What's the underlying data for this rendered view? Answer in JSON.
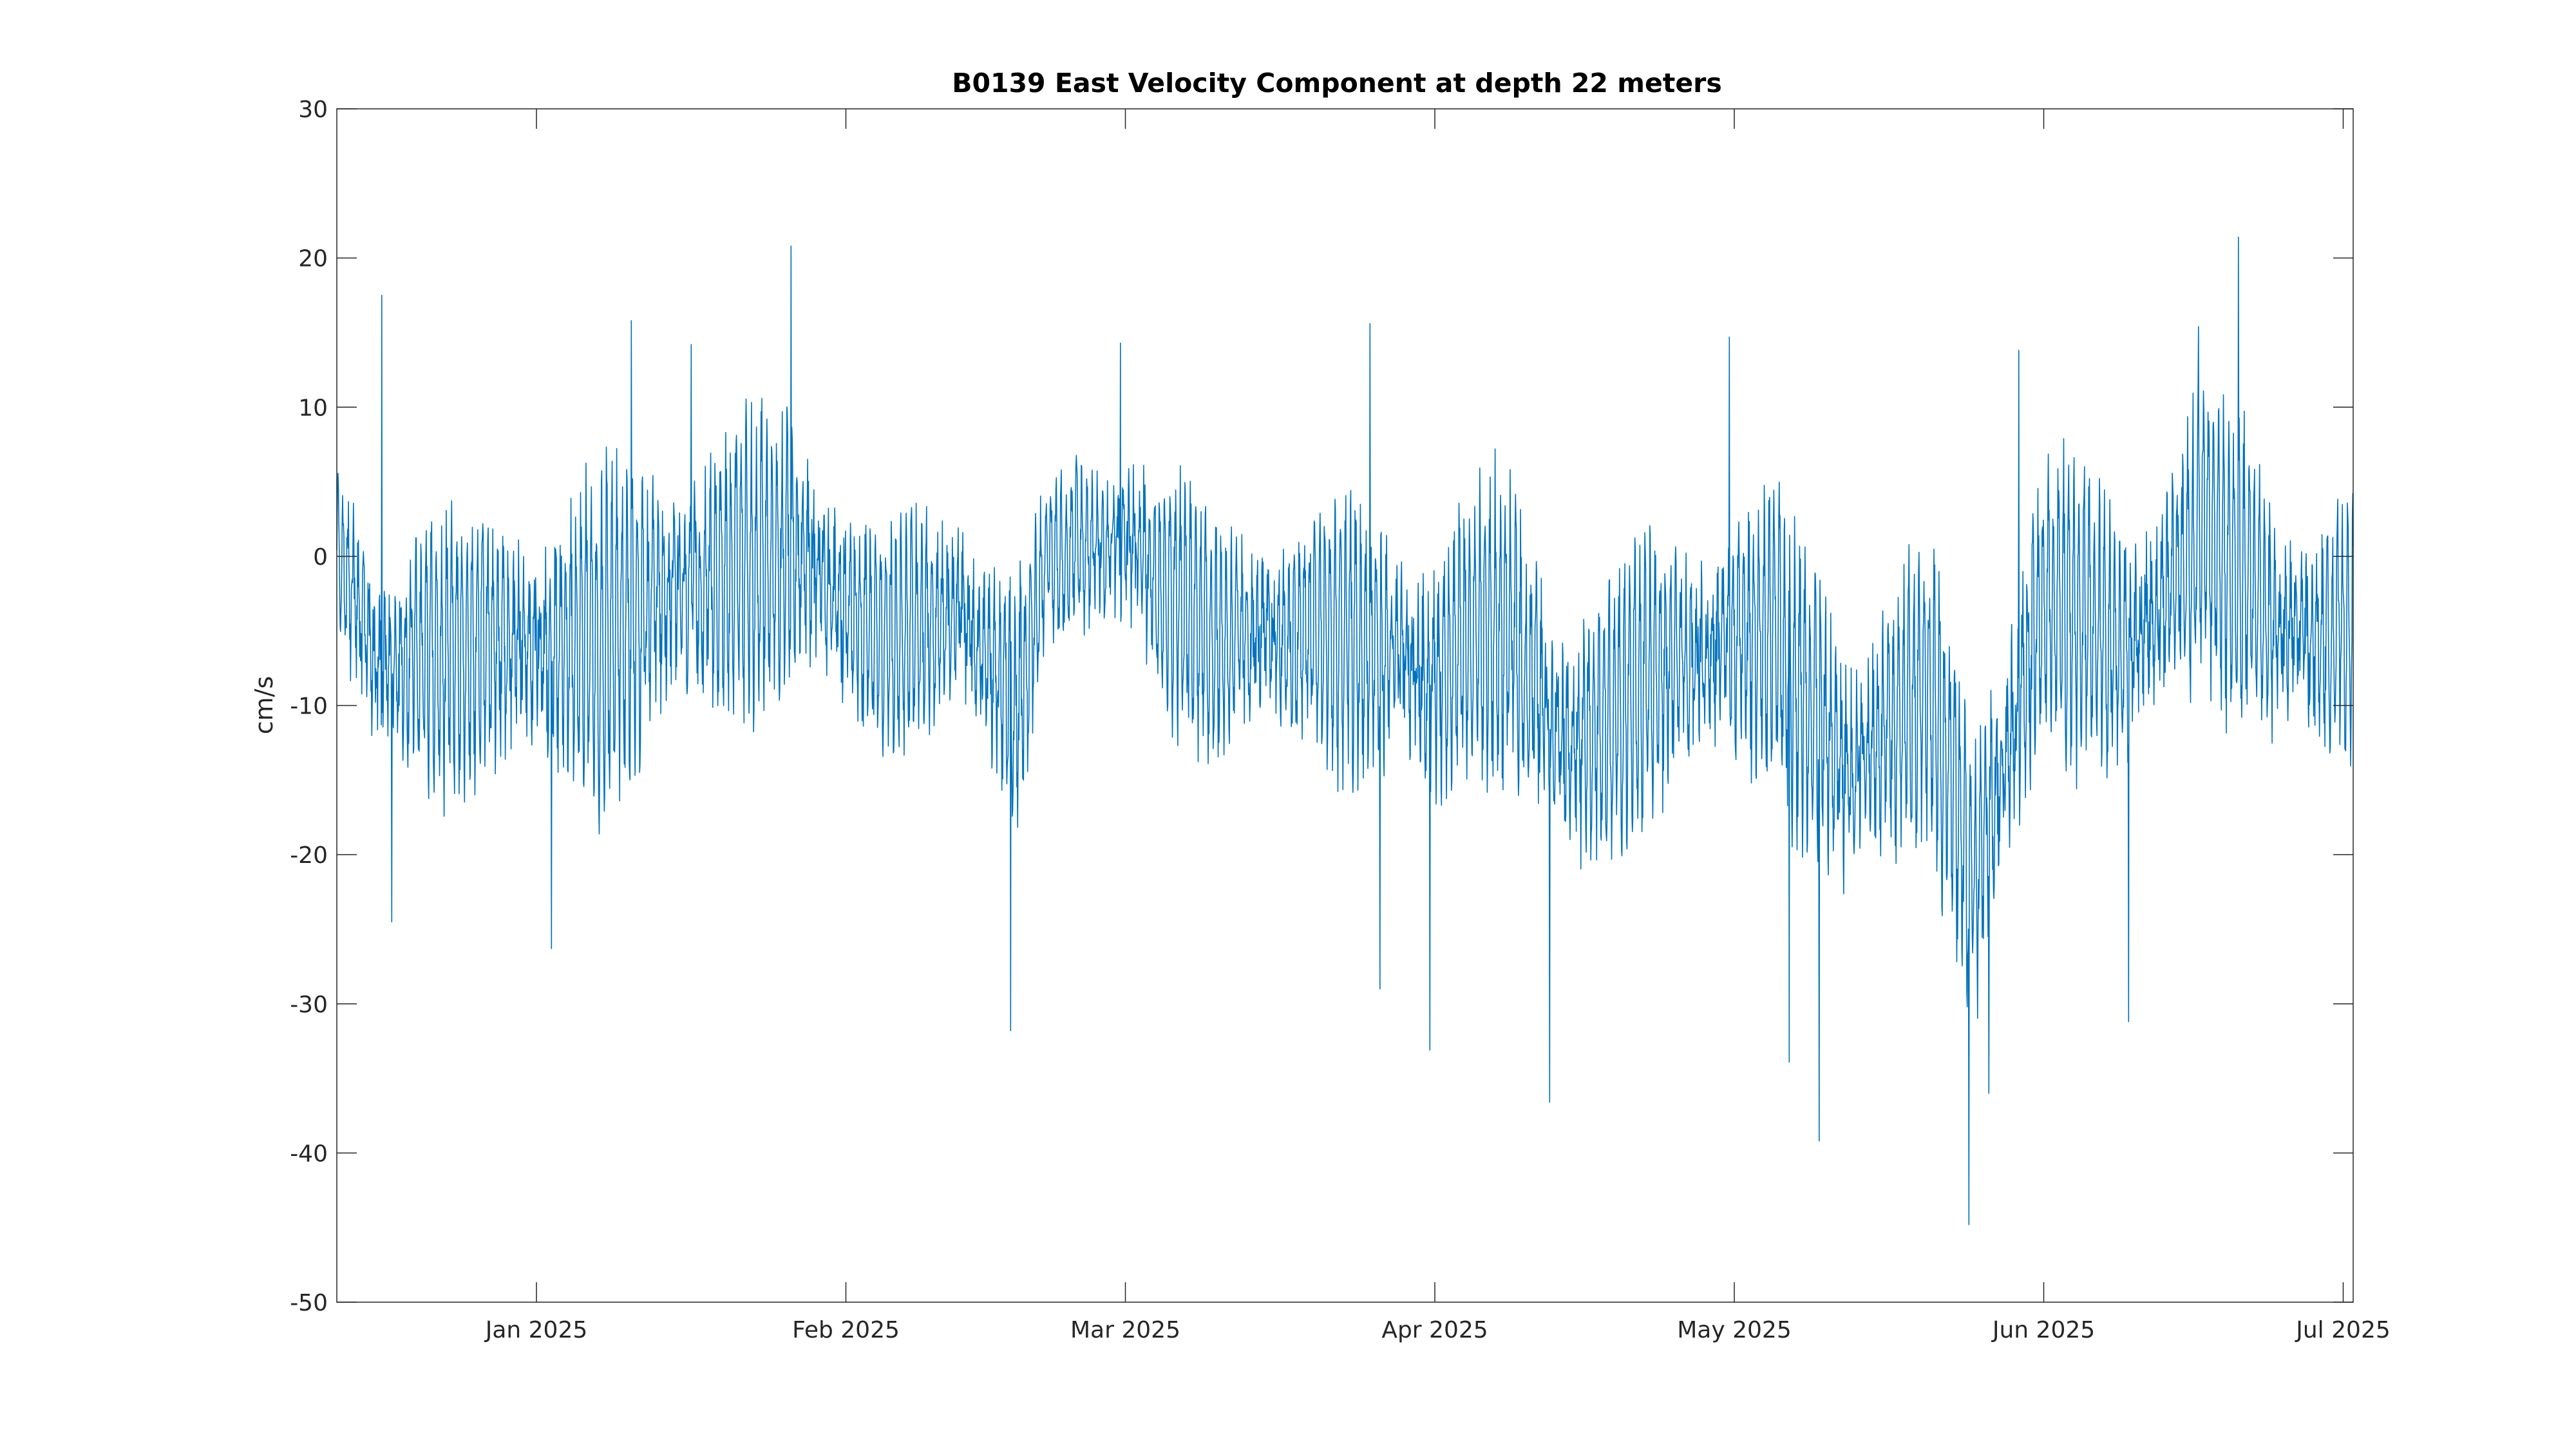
{
  "chart_data": {
    "type": "line",
    "title": "B0139 East Velocity Component at depth 22 meters",
    "xlabel": "",
    "ylabel": "cm/s",
    "x_range": [
      "2024-12-12",
      "2025-07-02"
    ],
    "ylim": [
      -50,
      30
    ],
    "grid": false,
    "legend": "none",
    "line_color": "#0072BD",
    "x_ticks": [
      {
        "date": "2025-01-01",
        "label": "Jan 2025"
      },
      {
        "date": "2025-02-01",
        "label": "Feb 2025"
      },
      {
        "date": "2025-03-01",
        "label": "Mar 2025"
      },
      {
        "date": "2025-04-01",
        "label": "Apr 2025"
      },
      {
        "date": "2025-05-01",
        "label": "May 2025"
      },
      {
        "date": "2025-06-01",
        "label": "Jun 2025"
      },
      {
        "date": "2025-07-01",
        "label": "Jul 2025"
      }
    ],
    "y_ticks": [
      30,
      20,
      10,
      0,
      -10,
      -20,
      -30,
      -40,
      -50
    ],
    "series": [
      {
        "sampling": "hourly (approximate, reconstructed from figure)",
        "x_start": "2024-12-12",
        "x_end": "2025-07-02",
        "envelope": [
          {
            "date": "2024-12-12",
            "mean": 1,
            "amplitude": 7
          },
          {
            "date": "2024-12-16",
            "mean": -8,
            "amplitude": 9
          },
          {
            "date": "2024-12-24",
            "mean": -6,
            "amplitude": 10
          },
          {
            "date": "2025-01-01",
            "mean": -6,
            "amplitude": 11
          },
          {
            "date": "2025-01-10",
            "mean": -5,
            "amplitude": 12
          },
          {
            "date": "2025-01-20",
            "mean": -1,
            "amplitude": 10
          },
          {
            "date": "2025-01-27",
            "mean": 0,
            "amplitude": 11
          },
          {
            "date": "2025-02-05",
            "mean": -6,
            "amplitude": 8
          },
          {
            "date": "2025-02-12",
            "mean": -3,
            "amplitude": 9
          },
          {
            "date": "2025-02-18",
            "mean": -11,
            "amplitude": 10
          },
          {
            "date": "2025-02-21",
            "mean": 0,
            "amplitude": 5
          },
          {
            "date": "2025-03-01",
            "mean": 1,
            "amplitude": 9
          },
          {
            "date": "2025-03-10",
            "mean": -5,
            "amplitude": 9
          },
          {
            "date": "2025-03-20",
            "mean": -5,
            "amplitude": 9
          },
          {
            "date": "2025-03-31",
            "mean": -8,
            "amplitude": 11
          },
          {
            "date": "2025-04-08",
            "mean": -5,
            "amplitude": 11
          },
          {
            "date": "2025-04-15",
            "mean": -13,
            "amplitude": 11
          },
          {
            "date": "2025-04-25",
            "mean": -7,
            "amplitude": 10
          },
          {
            "date": "2025-05-05",
            "mean": -5,
            "amplitude": 10
          },
          {
            "date": "2025-05-12",
            "mean": -15,
            "amplitude": 12
          },
          {
            "date": "2025-05-20",
            "mean": -8,
            "amplitude": 10
          },
          {
            "date": "2025-05-25",
            "mean": -22,
            "amplitude": 13
          },
          {
            "date": "2025-06-01",
            "mean": -3,
            "amplitude": 11
          },
          {
            "date": "2025-06-10",
            "mean": -6,
            "amplitude": 10
          },
          {
            "date": "2025-06-17",
            "mean": 2,
            "amplitude": 11
          },
          {
            "date": "2025-06-25",
            "mean": -5,
            "amplitude": 10
          },
          {
            "date": "2025-07-02",
            "mean": -5,
            "amplitude": 9
          }
        ],
        "spikes": [
          {
            "date": "2024-12-16",
            "value": 17.5
          },
          {
            "date": "2024-12-17",
            "value": -24.5
          },
          {
            "date": "2025-01-02",
            "value": -26.3
          },
          {
            "date": "2025-01-10",
            "value": 15.8
          },
          {
            "date": "2025-01-16",
            "value": 14.2
          },
          {
            "date": "2025-01-26",
            "value": 20.8
          },
          {
            "date": "2025-02-17",
            "value": -31.8
          },
          {
            "date": "2025-02-28",
            "value": 14.3
          },
          {
            "date": "2025-03-25",
            "value": 15.6
          },
          {
            "date": "2025-03-26",
            "value": -29.0
          },
          {
            "date": "2025-03-31",
            "value": -33.1
          },
          {
            "date": "2025-04-12",
            "value": -36.6
          },
          {
            "date": "2025-04-30",
            "value": 14.7
          },
          {
            "date": "2025-05-06",
            "value": -33.9
          },
          {
            "date": "2025-05-09",
            "value": -39.2
          },
          {
            "date": "2025-05-24",
            "value": -44.8
          },
          {
            "date": "2025-05-26",
            "value": -36.0
          },
          {
            "date": "2025-05-29",
            "value": 13.8
          },
          {
            "date": "2025-06-09",
            "value": -31.2
          },
          {
            "date": "2025-06-16",
            "value": 15.4
          },
          {
            "date": "2025-06-20",
            "value": 21.4
          }
        ]
      }
    ]
  }
}
